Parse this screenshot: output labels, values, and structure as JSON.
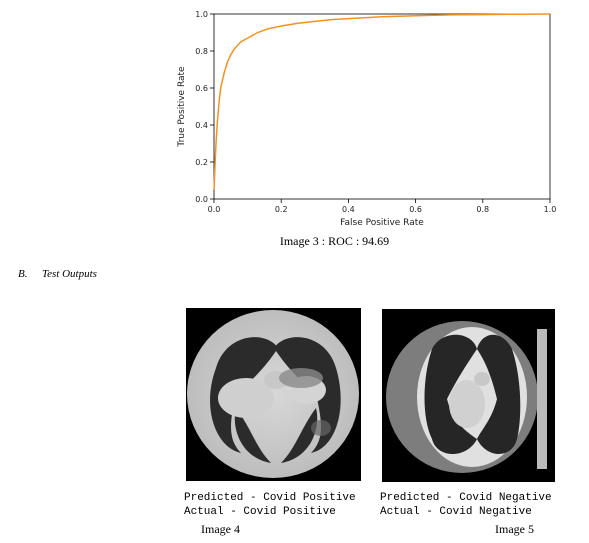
{
  "chart_data": {
    "type": "line",
    "xlabel": "False Positive Rate",
    "ylabel": "True Positive Rate",
    "xlim": [
      0.0,
      1.0
    ],
    "ylim": [
      0.0,
      1.0
    ],
    "xticks": [
      "0.0",
      "0.2",
      "0.4",
      "0.6",
      "0.8",
      "1.0"
    ],
    "yticks": [
      "0.0",
      "0.2",
      "0.4",
      "0.6",
      "0.8",
      "1.0"
    ],
    "grid": false,
    "color": "#f5921e",
    "series": [
      {
        "x": [
          0.0,
          0.003,
          0.006,
          0.01,
          0.015,
          0.02,
          0.03,
          0.04,
          0.05,
          0.06,
          0.08,
          0.1,
          0.13,
          0.16,
          0.2,
          0.25,
          0.3,
          0.35,
          0.4,
          0.5,
          0.6,
          0.7,
          0.8,
          0.9,
          1.0
        ],
        "y": [
          0.05,
          0.18,
          0.3,
          0.42,
          0.52,
          0.6,
          0.68,
          0.74,
          0.78,
          0.81,
          0.85,
          0.87,
          0.9,
          0.92,
          0.935,
          0.95,
          0.96,
          0.97,
          0.975,
          0.985,
          0.99,
          0.995,
          0.997,
          0.999,
          1.0
        ]
      }
    ]
  },
  "captions": {
    "figure3": "Image 3 : ROC : 94.69",
    "image4": "Image 4",
    "image5": "Image 5"
  },
  "section": {
    "number": "B.",
    "title": "Test Outputs"
  },
  "outputs": {
    "image4": {
      "predicted": "Predicted - Covid Positive",
      "actual": "Actual - Covid Positive"
    },
    "image5": {
      "predicted": "Predicted - Covid Negative",
      "actual": "Actual - Covid Negative"
    }
  }
}
